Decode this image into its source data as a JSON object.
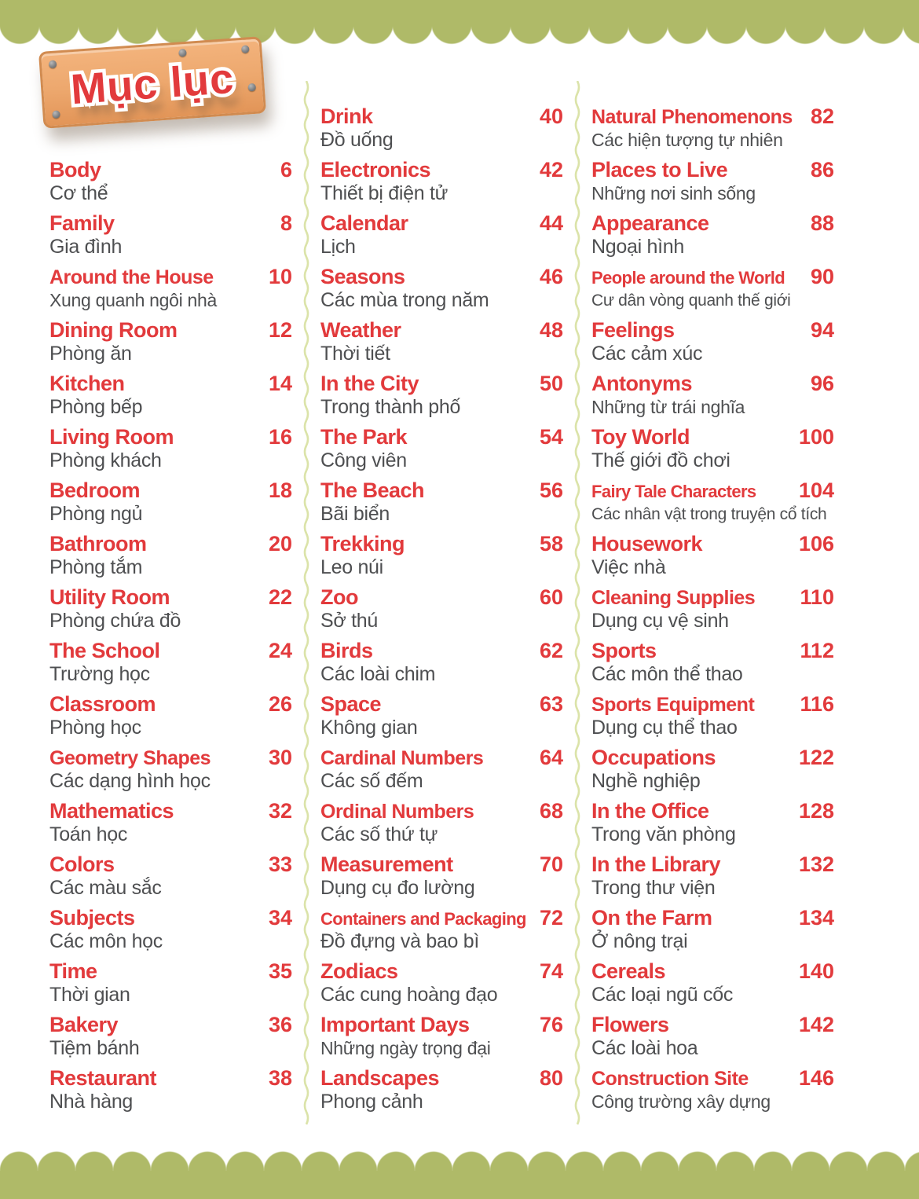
{
  "sign": {
    "title": "Mục lục"
  },
  "colors": {
    "accent_red": "#e23a3c",
    "border_green": "#afba68",
    "divider_green": "#dbe3a9",
    "subtitle_gray": "#4e4f51",
    "wood": "#eda86e"
  },
  "columns": [
    {
      "entries": [
        {
          "en": "Body",
          "vi": "Cơ thể",
          "page": "6"
        },
        {
          "en": "Family",
          "vi": "Gia đình",
          "page": "8"
        },
        {
          "en": "Around the House",
          "vi": "Xung quanh ngôi nhà",
          "page": "10"
        },
        {
          "en": "Dining Room",
          "vi": "Phòng ăn",
          "page": "12"
        },
        {
          "en": "Kitchen",
          "vi": "Phòng bếp",
          "page": "14"
        },
        {
          "en": "Living Room",
          "vi": "Phòng khách",
          "page": "16"
        },
        {
          "en": "Bedroom",
          "vi": "Phòng ngủ",
          "page": "18"
        },
        {
          "en": "Bathroom",
          "vi": "Phòng tắm",
          "page": "20"
        },
        {
          "en": "Utility Room",
          "vi": "Phòng chứa đồ",
          "page": "22"
        },
        {
          "en": "The School",
          "vi": "Trường học",
          "page": "24"
        },
        {
          "en": "Classroom",
          "vi": "Phòng học",
          "page": "26"
        },
        {
          "en": "Geometry Shapes",
          "vi": "Các dạng hình học",
          "page": "30"
        },
        {
          "en": "Mathematics",
          "vi": "Toán học",
          "page": "32"
        },
        {
          "en": "Colors",
          "vi": "Các màu sắc",
          "page": "33"
        },
        {
          "en": "Subjects",
          "vi": "Các môn học",
          "page": "34"
        },
        {
          "en": "Time",
          "vi": "Thời gian",
          "page": "35"
        },
        {
          "en": "Bakery",
          "vi": "Tiệm bánh",
          "page": "36"
        },
        {
          "en": "Restaurant",
          "vi": "Nhà hàng",
          "page": "38"
        }
      ]
    },
    {
      "entries": [
        {
          "en": "Drink",
          "vi": "Đồ uống",
          "page": "40"
        },
        {
          "en": "Electronics",
          "vi": "Thiết bị điện tử",
          "page": "42"
        },
        {
          "en": "Calendar",
          "vi": "Lịch",
          "page": "44"
        },
        {
          "en": "Seasons",
          "vi": "Các mùa trong năm",
          "page": "46"
        },
        {
          "en": "Weather",
          "vi": "Thời tiết",
          "page": "48"
        },
        {
          "en": "In the City",
          "vi": "Trong thành phố",
          "page": "50"
        },
        {
          "en": "The Park",
          "vi": "Công viên",
          "page": "54"
        },
        {
          "en": "The Beach",
          "vi": "Bãi biển",
          "page": "56"
        },
        {
          "en": "Trekking",
          "vi": "Leo núi",
          "page": "58"
        },
        {
          "en": "Zoo",
          "vi": "Sở thú",
          "page": "60"
        },
        {
          "en": "Birds",
          "vi": "Các loài chim",
          "page": "62"
        },
        {
          "en": "Space",
          "vi": "Không gian",
          "page": "63"
        },
        {
          "en": "Cardinal Numbers",
          "vi": "Các số đếm",
          "page": "64"
        },
        {
          "en": "Ordinal Numbers",
          "vi": "Các số thứ tự",
          "page": "68"
        },
        {
          "en": "Measurement",
          "vi": "Dụng cụ đo lường",
          "page": "70"
        },
        {
          "en": "Containers and Packaging",
          "vi": "Đồ đựng và bao bì",
          "page": "72"
        },
        {
          "en": "Zodiacs",
          "vi": "Các cung hoàng đạo",
          "page": "74"
        },
        {
          "en": "Important Days",
          "vi": "Những ngày trọng đại",
          "page": "76"
        },
        {
          "en": "Landscapes",
          "vi": "Phong cảnh",
          "page": "80"
        }
      ]
    },
    {
      "entries": [
        {
          "en": "Natural Phenomenons",
          "vi": "Các hiện tượng tự nhiên",
          "page": "82"
        },
        {
          "en": "Places to Live",
          "vi": "Những nơi sinh sống",
          "page": "86"
        },
        {
          "en": "Appearance",
          "vi": "Ngoại hình",
          "page": "88"
        },
        {
          "en": "People around the World",
          "vi": "Cư dân vòng quanh thế giới",
          "page": "90"
        },
        {
          "en": "Feelings",
          "vi": "Các cảm xúc",
          "page": "94"
        },
        {
          "en": "Antonyms",
          "vi": "Những từ trái nghĩa",
          "page": "96"
        },
        {
          "en": "Toy World",
          "vi": "Thế giới đồ chơi",
          "page": "100"
        },
        {
          "en": "Fairy Tale Characters",
          "vi": "Các nhân vật trong truyện cổ tích",
          "page": "104"
        },
        {
          "en": "Housework",
          "vi": "Việc nhà",
          "page": "106"
        },
        {
          "en": "Cleaning Supplies",
          "vi": "Dụng cụ vệ sinh",
          "page": "110"
        },
        {
          "en": "Sports",
          "vi": "Các môn thể thao",
          "page": "112"
        },
        {
          "en": "Sports Equipment",
          "vi": "Dụng cụ thể thao",
          "page": "116"
        },
        {
          "en": "Occupations",
          "vi": "Nghề nghiệp",
          "page": "122"
        },
        {
          "en": "In the Office",
          "vi": "Trong văn phòng",
          "page": "128"
        },
        {
          "en": "In the Library",
          "vi": "Trong thư viện",
          "page": "132"
        },
        {
          "en": "On the Farm",
          "vi": "Ở nông trại",
          "page": "134"
        },
        {
          "en": "Cereals",
          "vi": "Các loại ngũ cốc",
          "page": "140"
        },
        {
          "en": "Flowers",
          "vi": "Các loài hoa",
          "page": "142"
        },
        {
          "en": "Construction Site",
          "vi": "Công trường xây dựng",
          "page": "146"
        }
      ]
    }
  ]
}
